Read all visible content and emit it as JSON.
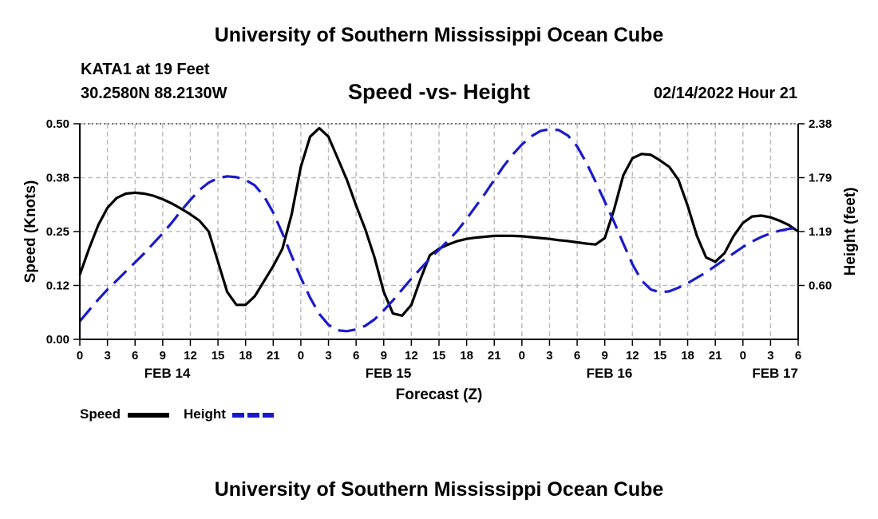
{
  "header": {
    "title": "University of Southern Mississippi Ocean Cube",
    "station": "KATA1 at 19 Feet",
    "coordinates": "30.2580N  88.2130W",
    "subtitle": "Speed -vs- Height",
    "datetime": "02/14/2022 Hour 21"
  },
  "footer": {
    "title": "University of Southern Mississippi Ocean Cube"
  },
  "chart_data": {
    "type": "line",
    "title": "Speed -vs- Height",
    "xlabel": "Forecast (Z)",
    "ylabel": "Speed (Knots)",
    "y2label": "Height (feet)",
    "x_unit": "hours from FEB 14 00Z",
    "xlim": [
      0,
      78
    ],
    "ylim": [
      0,
      0.5
    ],
    "y2lim": [
      0,
      2.38
    ],
    "x_tick_values": [
      0,
      3,
      6,
      9,
      12,
      15,
      18,
      21,
      24,
      27,
      30,
      33,
      36,
      39,
      42,
      45,
      48,
      51,
      54,
      57,
      60,
      63,
      66,
      69,
      72,
      75,
      78
    ],
    "x_tick_labels": [
      "0",
      "3",
      "6",
      "9",
      "12",
      "15",
      "18",
      "21",
      "0",
      "3",
      "6",
      "9",
      "12",
      "15",
      "18",
      "21",
      "0",
      "3",
      "6",
      "9",
      "12",
      "15",
      "18",
      "21",
      "0",
      "3",
      "6"
    ],
    "date_labels": [
      {
        "x": 9.5,
        "label": "FEB 14"
      },
      {
        "x": 33.5,
        "label": "FEB 15"
      },
      {
        "x": 57.5,
        "label": "FEB 16"
      },
      {
        "x": 75.5,
        "label": "FEB 17"
      }
    ],
    "y_ticks": [
      0.0,
      0.125,
      0.25,
      0.375,
      0.5
    ],
    "y_tick_labels": [
      "0.00",
      "0.12",
      "0.25",
      "0.38",
      "0.50"
    ],
    "y2_ticks": [
      0.595,
      1.19,
      1.785,
      2.38
    ],
    "y2_tick_labels": [
      "0.60",
      "1.19",
      "1.79",
      "2.38"
    ],
    "grid": true,
    "series": [
      {
        "name": "Speed",
        "axis": "left",
        "color": "#000000",
        "dash": "solid",
        "x": [
          0,
          1,
          2,
          3,
          4,
          5,
          6,
          7,
          8,
          9,
          10,
          11,
          12,
          13,
          14,
          15,
          16,
          17,
          18,
          19,
          20,
          21,
          22,
          23,
          24,
          25,
          26,
          27,
          28,
          29,
          30,
          31,
          32,
          33,
          34,
          35,
          36,
          37,
          38,
          39,
          40,
          41,
          42,
          43,
          44,
          45,
          46,
          47,
          48,
          49,
          50,
          51,
          52,
          53,
          54,
          55,
          56,
          57,
          58,
          59,
          60,
          61,
          62,
          63,
          64,
          65,
          66,
          67,
          68,
          69,
          70,
          71,
          72,
          73,
          74,
          75,
          76,
          77,
          78
        ],
        "values": [
          0.15,
          0.21,
          0.265,
          0.305,
          0.328,
          0.338,
          0.34,
          0.338,
          0.333,
          0.325,
          0.315,
          0.303,
          0.29,
          0.275,
          0.25,
          0.18,
          0.11,
          0.08,
          0.08,
          0.1,
          0.135,
          0.17,
          0.21,
          0.29,
          0.4,
          0.47,
          0.49,
          0.47,
          0.42,
          0.37,
          0.31,
          0.255,
          0.19,
          0.11,
          0.06,
          0.055,
          0.08,
          0.14,
          0.195,
          0.21,
          0.22,
          0.228,
          0.233,
          0.236,
          0.238,
          0.24,
          0.24,
          0.24,
          0.239,
          0.237,
          0.235,
          0.233,
          0.23,
          0.228,
          0.225,
          0.222,
          0.22,
          0.235,
          0.3,
          0.38,
          0.42,
          0.43,
          0.428,
          0.415,
          0.4,
          0.37,
          0.31,
          0.24,
          0.19,
          0.18,
          0.2,
          0.24,
          0.27,
          0.285,
          0.287,
          0.283,
          0.275,
          0.265,
          0.25
        ]
      },
      {
        "name": "Height",
        "axis": "right",
        "color": "#1a1acc",
        "dash": "dashed",
        "x": [
          0,
          1,
          2,
          3,
          4,
          5,
          6,
          7,
          8,
          9,
          10,
          11,
          12,
          13,
          14,
          15,
          16,
          17,
          18,
          19,
          20,
          21,
          22,
          23,
          24,
          25,
          26,
          27,
          28,
          29,
          30,
          31,
          32,
          33,
          34,
          35,
          36,
          37,
          38,
          39,
          40,
          41,
          42,
          43,
          44,
          45,
          46,
          47,
          48,
          49,
          50,
          51,
          52,
          53,
          54,
          55,
          56,
          57,
          58,
          59,
          60,
          61,
          62,
          63,
          64,
          65,
          66,
          67,
          68,
          69,
          70,
          71,
          72,
          73,
          74,
          75,
          76,
          77,
          78
        ],
        "values": [
          0.2,
          0.32,
          0.44,
          0.55,
          0.65,
          0.75,
          0.85,
          0.95,
          1.06,
          1.17,
          1.29,
          1.42,
          1.54,
          1.65,
          1.73,
          1.78,
          1.8,
          1.79,
          1.76,
          1.7,
          1.58,
          1.4,
          1.17,
          0.92,
          0.68,
          0.46,
          0.28,
          0.16,
          0.1,
          0.09,
          0.11,
          0.15,
          0.22,
          0.32,
          0.43,
          0.55,
          0.67,
          0.78,
          0.89,
          0.99,
          1.09,
          1.2,
          1.33,
          1.47,
          1.61,
          1.76,
          1.91,
          2.04,
          2.15,
          2.24,
          2.3,
          2.32,
          2.31,
          2.25,
          2.13,
          1.95,
          1.74,
          1.52,
          1.3,
          1.06,
          0.83,
          0.65,
          0.55,
          0.52,
          0.53,
          0.57,
          0.62,
          0.68,
          0.74,
          0.81,
          0.88,
          0.95,
          1.02,
          1.08,
          1.13,
          1.17,
          1.2,
          1.22,
          1.23
        ]
      }
    ],
    "legend": [
      {
        "label": "Speed",
        "color": "#000000",
        "dash": "solid"
      },
      {
        "label": "Height",
        "color": "#1a1acc",
        "dash": "dashed"
      }
    ],
    "legend_position": "bottom-left"
  }
}
